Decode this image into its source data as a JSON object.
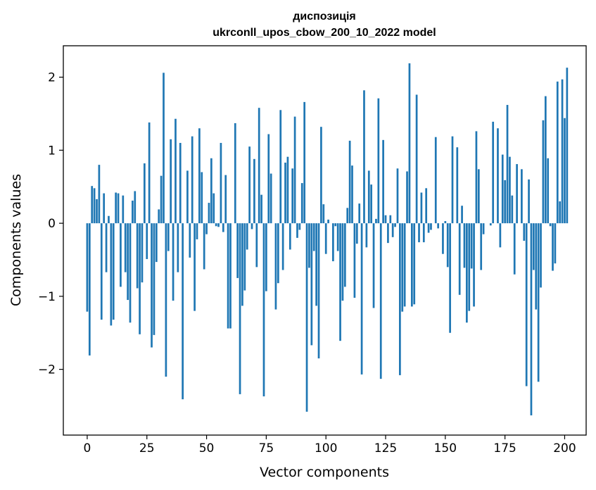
{
  "chart_data": {
    "type": "bar",
    "title_line1": "диспозиція",
    "title_line2": "ukrconll_upos_cbow_200_10_2022 model",
    "xlabel": "Vector components",
    "ylabel": "Components values",
    "xlim": [
      -10,
      209
    ],
    "ylim": [
      -2.9,
      2.43
    ],
    "x_ticks": [
      0,
      25,
      50,
      75,
      100,
      125,
      150,
      175,
      200
    ],
    "x_tick_labels": [
      "0",
      "25",
      "50",
      "75",
      "100",
      "125",
      "150",
      "175",
      "200"
    ],
    "y_ticks": [
      -2,
      -1,
      0,
      1,
      2
    ],
    "y_tick_labels": [
      "−2",
      "−1",
      "0",
      "1",
      "2"
    ],
    "bar_color": "#1f77b4",
    "values": [
      -1.21,
      -1.81,
      0.51,
      0.48,
      0.33,
      0.8,
      -1.32,
      0.41,
      -0.67,
      0.1,
      -1.4,
      -1.32,
      0.42,
      0.41,
      -0.87,
      0.38,
      -0.67,
      -1.05,
      -1.36,
      0.31,
      0.44,
      -0.89,
      -1.52,
      -0.81,
      0.82,
      -0.49,
      1.38,
      -1.7,
      -1.53,
      -0.53,
      0.19,
      0.65,
      2.06,
      -2.1,
      -0.38,
      1.15,
      -1.06,
      1.43,
      -0.67,
      1.1,
      -2.41,
      0.0,
      0.72,
      -0.47,
      1.19,
      -1.2,
      -0.22,
      1.3,
      0.7,
      -0.63,
      -0.15,
      0.28,
      0.89,
      0.41,
      -0.04,
      -0.05,
      1.1,
      -0.12,
      0.66,
      -1.44,
      -1.44,
      0.0,
      1.37,
      -0.75,
      -2.34,
      -1.13,
      -0.92,
      -0.36,
      1.05,
      -0.08,
      0.88,
      -0.6,
      1.58,
      0.39,
      -2.37,
      -0.93,
      1.22,
      0.68,
      0.0,
      -1.18,
      -0.82,
      1.55,
      -0.64,
      0.83,
      0.91,
      -0.36,
      0.75,
      1.46,
      -0.2,
      -0.09,
      0.55,
      1.66,
      -2.58,
      -0.61,
      -1.67,
      -0.38,
      -1.13,
      -1.85,
      1.32,
      0.26,
      -0.42,
      0.05,
      0.0,
      -0.52,
      -0.04,
      -0.38,
      -1.61,
      -1.06,
      -0.87,
      0.21,
      1.13,
      0.79,
      -1.02,
      -0.28,
      0.27,
      -2.07,
      1.82,
      -0.33,
      0.72,
      0.53,
      -1.16,
      0.06,
      1.71,
      -2.13,
      1.14,
      0.11,
      -0.27,
      0.11,
      -0.19,
      -0.05,
      0.75,
      -2.08,
      -1.21,
      -1.14,
      0.71,
      2.19,
      -1.14,
      -1.11,
      1.76,
      -0.26,
      0.42,
      -0.26,
      0.48,
      -0.13,
      -0.09,
      0.0,
      1.18,
      -0.07,
      0.0,
      -0.42,
      0.03,
      -0.6,
      -1.5,
      1.19,
      0.0,
      1.04,
      -0.98,
      0.24,
      -0.61,
      -1.36,
      -1.2,
      -0.62,
      -1.14,
      1.26,
      0.74,
      -0.64,
      -0.15,
      0.0,
      0.0,
      -0.03,
      1.39,
      0.0,
      1.3,
      -0.33,
      0.94,
      0.59,
      1.62,
      0.91,
      0.38,
      -0.7,
      0.81,
      0.0,
      0.74,
      -0.24,
      -2.23,
      0.6,
      -2.63,
      -0.64,
      -1.18,
      -2.17,
      -0.88,
      1.41,
      1.74,
      0.89,
      -0.04,
      -0.65,
      -0.55,
      1.94,
      0.3,
      1.97,
      1.44,
      2.13
    ]
  }
}
